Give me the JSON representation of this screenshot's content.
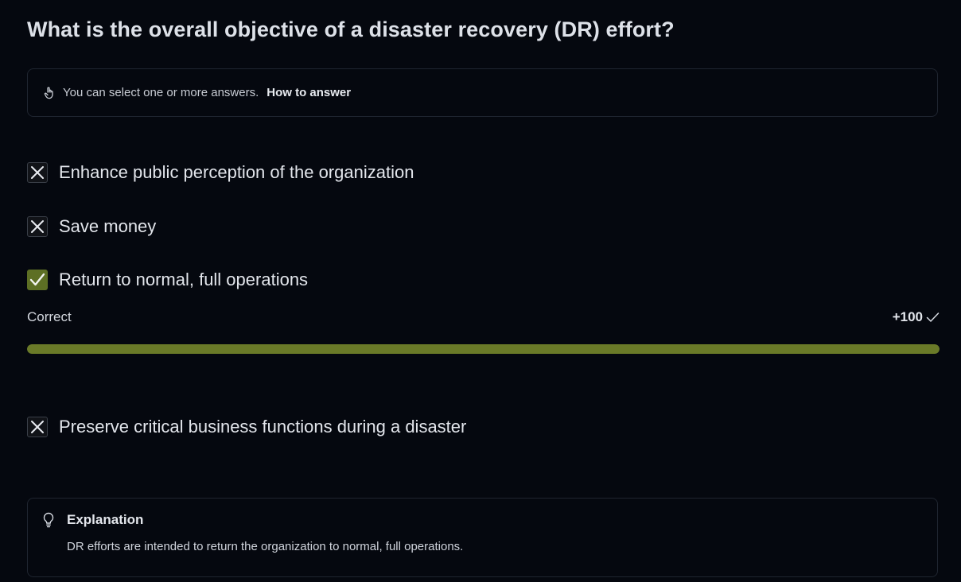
{
  "question": {
    "title": "What is the overall objective of a disaster recovery (DR) effort?"
  },
  "hint": {
    "icon": "hand-pointer-icon",
    "text": "You can select one or more answers.",
    "link": "How to answer"
  },
  "options": [
    {
      "label": "Enhance public perception of the organization",
      "state": "incorrect",
      "icon": "x-mark-icon"
    },
    {
      "label": "Save money",
      "state": "incorrect",
      "icon": "x-mark-icon"
    },
    {
      "label": "Return to normal, full operations",
      "state": "correct",
      "icon": "checkmark-icon"
    },
    {
      "label": "Preserve critical business functions during a disaster",
      "state": "incorrect",
      "icon": "x-mark-icon"
    }
  ],
  "result": {
    "label": "Correct",
    "score": "+100",
    "progress_percent": 100
  },
  "explanation": {
    "icon": "lightbulb-icon",
    "title": "Explanation",
    "text": "DR efforts are intended to return the organization to normal, full operations."
  },
  "colors": {
    "background": "#05080f",
    "correct_accent": "#6a7a28",
    "checkbox_correct": "#5d6f24",
    "border": "#1f2530"
  }
}
